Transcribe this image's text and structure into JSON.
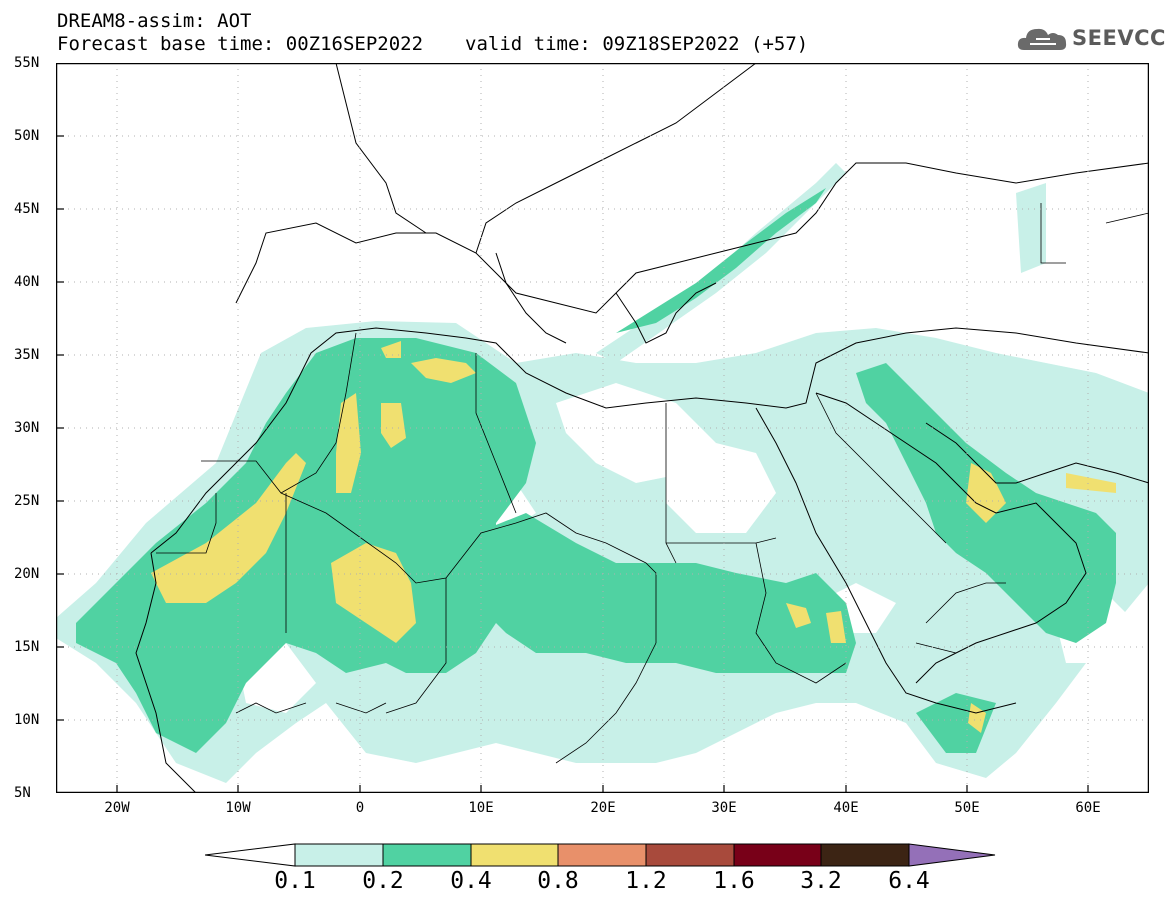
{
  "header": {
    "title": "DREAM8-assim: AOT",
    "base_time": "Forecast base time: 00Z16SEP2022",
    "valid_time": "valid time: 09Z18SEP2022 (+57)"
  },
  "logo": {
    "text": "SEEVCCC",
    "icon": "cloud-icon"
  },
  "map": {
    "lat_labels": [
      "55N",
      "50N",
      "45N",
      "40N",
      "35N",
      "30N",
      "25N",
      "20N",
      "15N",
      "10N",
      "5N"
    ],
    "lon_labels": [
      "20W",
      "10W",
      "0",
      "10E",
      "20E",
      "30E",
      "40E",
      "50E",
      "60E"
    ],
    "extent": {
      "lon": [
        -25,
        65
      ],
      "lat": [
        5,
        55
      ]
    },
    "grid": "dotted"
  },
  "colorbar": {
    "labels": [
      "0.1",
      "0.2",
      "0.4",
      "0.8",
      "1.2",
      "1.6",
      "3.2",
      "6.4"
    ],
    "colors": [
      "#ffffff",
      "#c8f0e8",
      "#50d2a2",
      "#f0e070",
      "#e8906a",
      "#a84a3c",
      "#780018",
      "#3c2414",
      "#9470b8"
    ]
  }
}
